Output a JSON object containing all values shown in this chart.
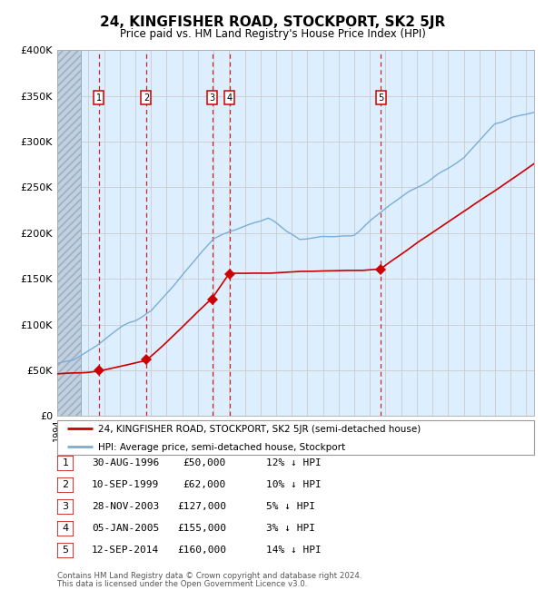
{
  "title": "24, KINGFISHER ROAD, STOCKPORT, SK2 5JR",
  "subtitle": "Price paid vs. HM Land Registry's House Price Index (HPI)",
  "ylim": [
    0,
    400000
  ],
  "yticks": [
    0,
    50000,
    100000,
    150000,
    200000,
    250000,
    300000,
    350000,
    400000
  ],
  "xlim_start": 1994.0,
  "xlim_end": 2024.5,
  "sales": [
    {
      "num": 1,
      "date_label": "30-AUG-1996",
      "year": 1996.66,
      "price": 50000,
      "pct": "12% ↓ HPI"
    },
    {
      "num": 2,
      "date_label": "10-SEP-1999",
      "year": 1999.69,
      "price": 62000,
      "pct": "10% ↓ HPI"
    },
    {
      "num": 3,
      "date_label": "28-NOV-2003",
      "year": 2003.91,
      "price": 127000,
      "pct": "5% ↓ HPI"
    },
    {
      "num": 4,
      "date_label": "05-JAN-2005",
      "year": 2005.01,
      "price": 155000,
      "pct": "3% ↓ HPI"
    },
    {
      "num": 5,
      "date_label": "12-SEP-2014",
      "year": 2014.7,
      "price": 160000,
      "pct": "14% ↓ HPI"
    }
  ],
  "legend_red": "24, KINGFISHER ROAD, STOCKPORT, SK2 5JR (semi-detached house)",
  "legend_blue": "HPI: Average price, semi-detached house, Stockport",
  "footer1": "Contains HM Land Registry data © Crown copyright and database right 2024.",
  "footer2": "This data is licensed under the Open Government Licence v3.0.",
  "hatch_end_year": 1995.5,
  "red_color": "#cc0000",
  "blue_color": "#7aaed6",
  "grid_color": "#cccccc",
  "bg_color": "#ddeeff",
  "hatch_color": "#c0d0e0"
}
